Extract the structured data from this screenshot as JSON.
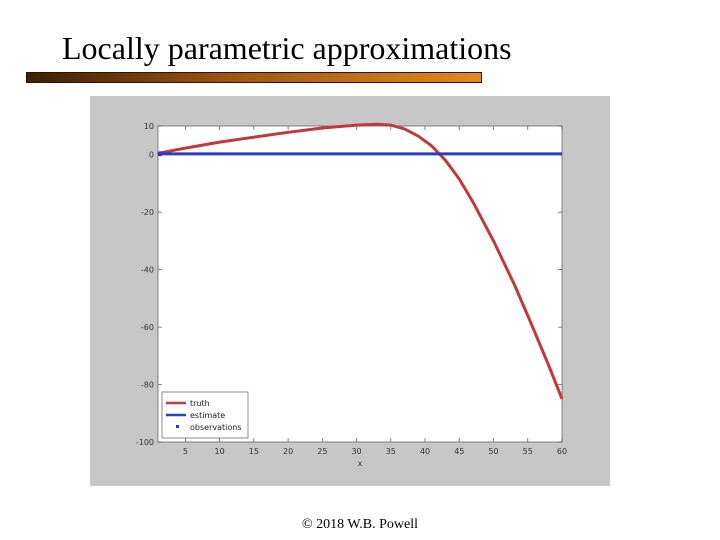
{
  "slide": {
    "title": "Locally parametric approximations",
    "footer": "© 2018 W.B. Powell"
  },
  "colors": {
    "accent_bar_dark": "#3a1f05",
    "accent_bar_light": "#e08a1e",
    "truth": "#c0393b",
    "estimate": "#2a3fc4",
    "figure_background": "#c7c7c7"
  },
  "chart_data": {
    "type": "line",
    "title": "",
    "xlabel": "x",
    "ylabel": "",
    "xlim": [
      1,
      60
    ],
    "ylim": [
      -100,
      10
    ],
    "xticks": [
      5,
      10,
      15,
      20,
      25,
      30,
      35,
      40,
      45,
      50,
      55,
      60
    ],
    "yticks": [
      10,
      0,
      -20,
      -40,
      -60,
      -80,
      -100
    ],
    "grid": false,
    "legend_position": "bottom-left",
    "series": [
      {
        "name": "truth",
        "color": "#c0393b",
        "x": [
          1,
          5,
          10,
          15,
          20,
          25,
          30,
          33,
          35,
          37,
          39,
          41,
          43,
          45,
          47,
          50,
          53,
          55,
          58,
          60
        ],
        "y": [
          0.5,
          2.3,
          4.4,
          6.1,
          7.8,
          9.3,
          10.3,
          10.6,
          10.3,
          9.0,
          6.5,
          3.0,
          -2.0,
          -8.5,
          -16.5,
          -30.0,
          -45.0,
          -56.0,
          -73.0,
          -85.0
        ]
      },
      {
        "name": "estimate",
        "color": "#2a3fc4",
        "x": [
          1,
          60
        ],
        "y": [
          0.3,
          0.3
        ]
      },
      {
        "name": "observations",
        "color": "#2a3fc4",
        "marker": "dot",
        "x": [],
        "y": []
      }
    ]
  }
}
